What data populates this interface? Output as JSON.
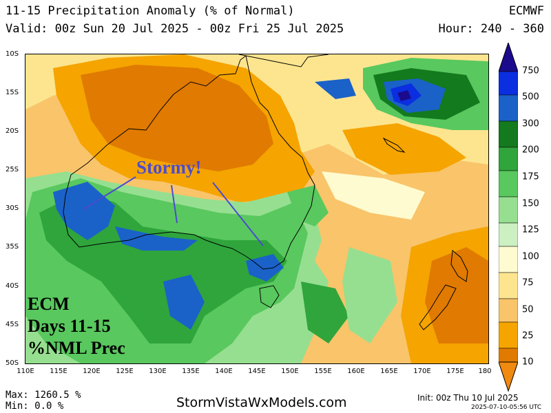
{
  "header": {
    "title": "11-15 Precipitation Anomaly (% of Normal)",
    "valid": "Valid: 00z Sun 20 Jul 2025 - 00z Fri 25 Jul 2025",
    "model": "ECMWF",
    "hour": "Hour: 240 - 360"
  },
  "axes": {
    "lat_labels": [
      "10S",
      "15S",
      "20S",
      "25S",
      "30S",
      "35S",
      "40S",
      "45S",
      "50S"
    ],
    "lon_labels": [
      "110E",
      "115E",
      "120E",
      "125E",
      "130E",
      "135E",
      "140E",
      "145E",
      "150E",
      "155E",
      "160E",
      "165E",
      "170E",
      "175E",
      "180"
    ]
  },
  "legend": {
    "levels": [
      "750",
      "500",
      "300",
      "200",
      "175",
      "150",
      "125",
      "100",
      "75",
      "50",
      "25",
      "10"
    ],
    "colors": [
      "#e07a00",
      "#f5a400",
      "#f9c46a",
      "#fde58f",
      "#fffbd0",
      "#ccf0c2",
      "#96df90",
      "#59c85e",
      "#2fa53c",
      "#137a1e",
      "#1a62c8",
      "#0b2ee0",
      "#1b0b8c"
    ]
  },
  "annotations": {
    "stormy": "Stormy!",
    "ecm_lines": [
      "ECM",
      "Days 11-15",
      "%NML Prec"
    ]
  },
  "footer": {
    "max": "Max: 1260.5 %",
    "min": "Min: 0.0 %",
    "site": "StormVistaWxModels.com",
    "init": "Init: 00z Thu 10 Jul 2025",
    "stamp": "2025-07-10-05:56 UTC"
  }
}
